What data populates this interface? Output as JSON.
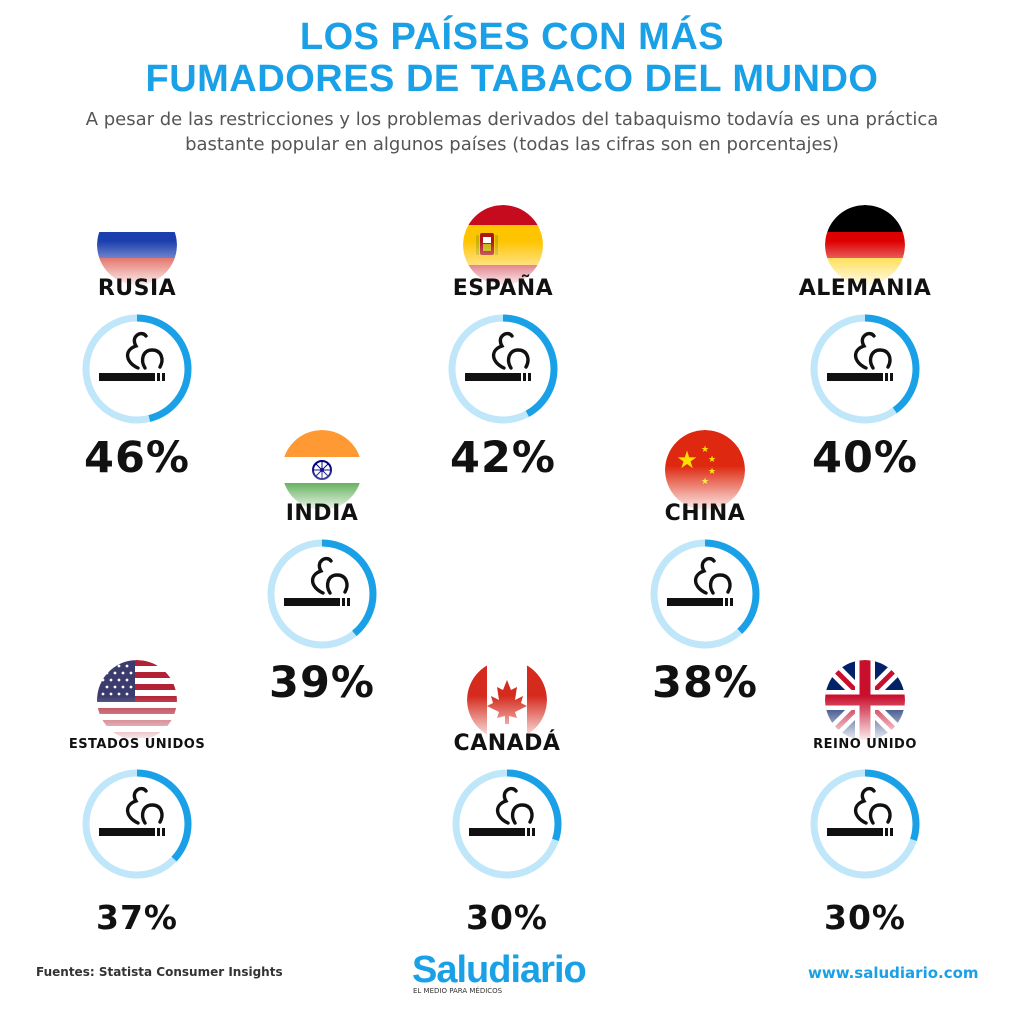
{
  "header": {
    "title_line1": "LOS PAÍSES CON MÁS",
    "title_line2": "FUMADORES DE TABACO DEL MUNDO",
    "subtitle_line1": "A pesar de las restricciones y los problemas derivados del tabaquismo todavía es una práctica",
    "subtitle_line2": "bastante popular en algunos países (todas las cifras son en porcentajes)"
  },
  "chart_data": {
    "type": "bar",
    "title": "LOS PAÍSES CON MÁS FUMADORES DE TABACO DEL MUNDO",
    "categories": [
      "RUSIA",
      "ESPAÑA",
      "ALEMANIA",
      "INDIA",
      "CHINA",
      "ESTADOS UNIDOS",
      "CANADÁ",
      "REINO UNIDO"
    ],
    "values": [
      46,
      42,
      40,
      39,
      38,
      37,
      30,
      30
    ],
    "labels": [
      "46%",
      "42%",
      "40%",
      "39%",
      "38%",
      "37%",
      "30%",
      "30%"
    ],
    "unit": "%"
  },
  "countries": [
    {
      "name": "RUSIA",
      "value": 46,
      "label": "46%",
      "flag": "russia-flag-icon"
    },
    {
      "name": "ESPAÑA",
      "value": 42,
      "label": "42%",
      "flag": "spain-flag-icon"
    },
    {
      "name": "ALEMANIA",
      "value": 40,
      "label": "40%",
      "flag": "germany-flag-icon"
    },
    {
      "name": "INDIA",
      "value": 39,
      "label": "39%",
      "flag": "india-flag-icon"
    },
    {
      "name": "CHINA",
      "value": 38,
      "label": "38%",
      "flag": "china-flag-icon"
    },
    {
      "name": "ESTADOS UNIDOS",
      "value": 37,
      "label": "37%",
      "flag": "usa-flag-icon"
    },
    {
      "name": "CANADÁ",
      "value": 30,
      "label": "30%",
      "flag": "canada-flag-icon"
    },
    {
      "name": "REINO UNIDO",
      "value": 30,
      "label": "30%",
      "flag": "uk-flag-icon"
    }
  ],
  "colors": {
    "accent": "#1aa0e6",
    "gauge_track": "#bfe6f9",
    "gauge_fill": "#1aa0e6",
    "text": "#111111",
    "subtitle": "#555555"
  },
  "footer": {
    "source": "Fuentes: Statista Consumer Insights",
    "brand": "Saludiario",
    "tagline": "EL MEDIO PARA MÉDICOS",
    "url": "www.saludiario.com"
  }
}
